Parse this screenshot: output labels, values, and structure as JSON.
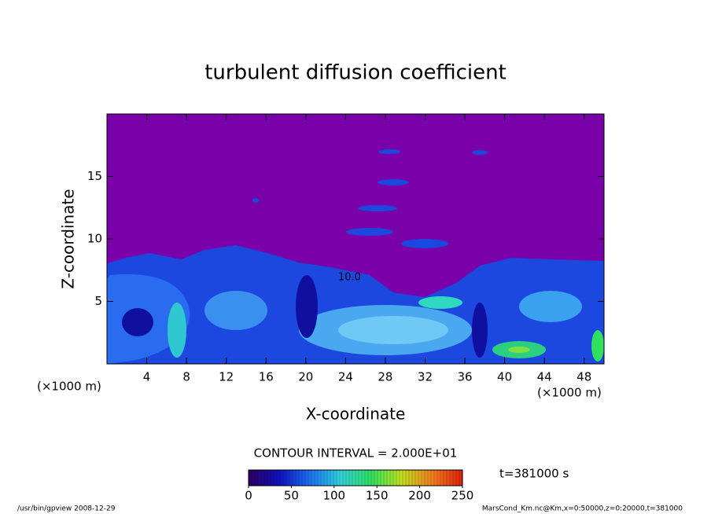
{
  "chart_data": {
    "type": "contour",
    "title": "turbulent diffusion coefficient",
    "x_label": "X-coordinate",
    "y_label": "Z-coordinate",
    "x_unit": "(×1000 m)",
    "xlim": [
      0,
      50
    ],
    "xticks": [
      4,
      8,
      12,
      16,
      20,
      24,
      28,
      32,
      36,
      40,
      44,
      48
    ],
    "ylim": [
      0,
      20
    ],
    "yticks": [
      5,
      10,
      15
    ],
    "contour_labels": [
      "10.0"
    ],
    "contour_interval": "CONTOUR INTERVAL = 2.000E+01",
    "time_label": "t=381000 s",
    "colorbar_lim": [
      0,
      250
    ],
    "colorbar_ticks": [
      0,
      50,
      100,
      150,
      200,
      250
    ],
    "colormap": [
      "#2a0060",
      "#1010c0",
      "#1a70f0",
      "#30d0e0",
      "#30e060",
      "#c0e020",
      "#f08020",
      "#e02010"
    ],
    "footer_left": "/usr/bin/gpview  2008-12-29",
    "footer_right": "MarsCond_Km.nc@Km,x=0:50000,z=0:20000,t=381000"
  }
}
